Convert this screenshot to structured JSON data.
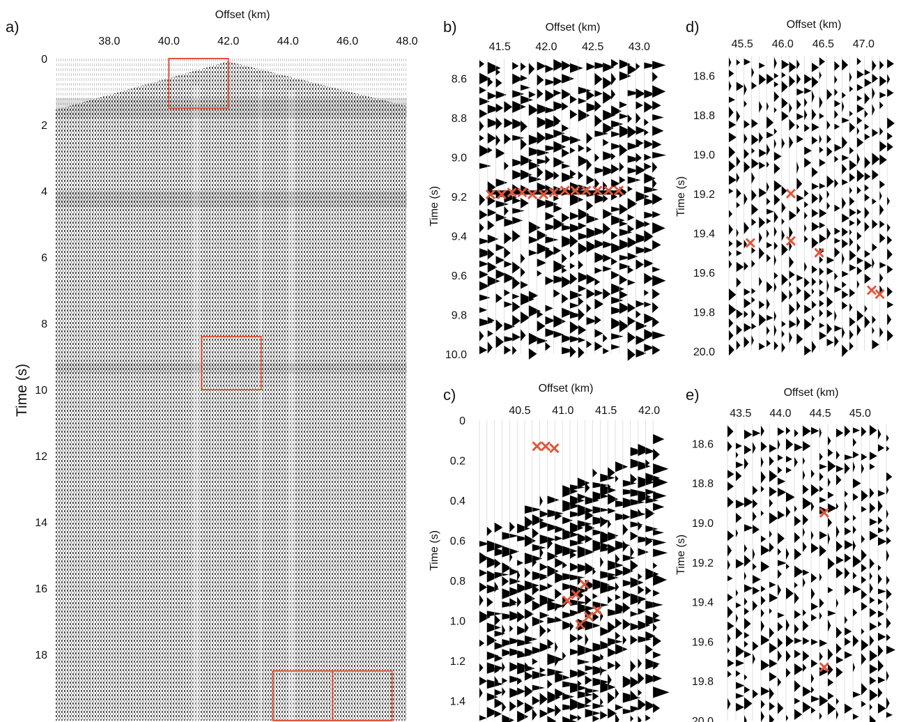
{
  "colors": {
    "box": "#e2553a",
    "pick": "#e2553a",
    "trace": "#000000",
    "bg": "#ffffff"
  },
  "panels": [
    {
      "id": "a",
      "label": "a)",
      "xlabel": "Offset (km)",
      "ylabel": "Time (s)",
      "xticks": [
        "38.0",
        "40.0",
        "42.0",
        "44.0",
        "46.0",
        "48.0"
      ],
      "yticks": [
        "0",
        "2",
        "4",
        "6",
        "8",
        "10",
        "12",
        "14",
        "16",
        "18"
      ],
      "xlim": [
        36.2,
        48.0
      ],
      "ylim": [
        0,
        20
      ],
      "boxes": [
        {
          "x": [
            40.0,
            42.0
          ],
          "t": [
            0,
            1.5
          ]
        },
        {
          "x": [
            41.1,
            43.1
          ],
          "t": [
            8.4,
            10.0
          ]
        },
        {
          "x": [
            43.5,
            45.5
          ],
          "t": [
            18.5,
            20.0
          ]
        },
        {
          "x": [
            45.5,
            47.5
          ],
          "t": [
            18.5,
            20.0
          ]
        }
      ]
    },
    {
      "id": "b",
      "label": "b)",
      "xlabel": "Offset (km)",
      "ylabel": "Time (s)",
      "xticks": [
        "41.5",
        "42.0",
        "42.5",
        "43.0"
      ],
      "yticks": [
        "8.6",
        "8.8",
        "9.0",
        "9.2",
        "9.4",
        "9.6",
        "9.8",
        "10.0"
      ],
      "xlim": [
        41.25,
        43.2
      ],
      "ylim": [
        8.5,
        10.0
      ],
      "picks": [
        {
          "x": 41.4,
          "t": 9.19
        },
        {
          "x": 41.52,
          "t": 9.19
        },
        {
          "x": 41.63,
          "t": 9.18
        },
        {
          "x": 41.74,
          "t": 9.18
        },
        {
          "x": 41.85,
          "t": 9.19
        },
        {
          "x": 41.97,
          "t": 9.19
        },
        {
          "x": 42.08,
          "t": 9.18
        },
        {
          "x": 42.2,
          "t": 9.17
        },
        {
          "x": 42.31,
          "t": 9.17
        },
        {
          "x": 42.43,
          "t": 9.17
        },
        {
          "x": 42.55,
          "t": 9.17
        },
        {
          "x": 42.67,
          "t": 9.17
        },
        {
          "x": 42.78,
          "t": 9.17
        }
      ]
    },
    {
      "id": "c",
      "label": "c)",
      "xlabel": "Offset (km)",
      "ylabel": "Time (s)",
      "xticks": [
        "40.5",
        "41.0",
        "41.5",
        "42.0"
      ],
      "yticks": [
        "0",
        "0.2",
        "0.4",
        "0.6",
        "0.8",
        "1.0",
        "1.2",
        "1.4"
      ],
      "xlim": [
        40.0,
        42.1
      ],
      "ylim": [
        0,
        1.5
      ],
      "picks": [
        {
          "x": 40.7,
          "t": 0.13
        },
        {
          "x": 40.8,
          "t": 0.13
        },
        {
          "x": 40.9,
          "t": 0.14
        },
        {
          "x": 41.05,
          "t": 0.9
        },
        {
          "x": 41.15,
          "t": 0.87
        },
        {
          "x": 41.25,
          "t": 0.82
        },
        {
          "x": 41.2,
          "t": 1.02
        },
        {
          "x": 41.3,
          "t": 0.98
        },
        {
          "x": 41.4,
          "t": 0.95
        }
      ]
    },
    {
      "id": "d",
      "label": "d)",
      "xlabel": "Offset (km)",
      "ylabel": "Time (s)",
      "xticks": [
        "45.5",
        "46.0",
        "46.5",
        "47.0"
      ],
      "yticks": [
        "18.6",
        "18.8",
        "19.0",
        "19.2",
        "19.4",
        "19.6",
        "19.8",
        "20.0"
      ],
      "xlim": [
        45.3,
        47.35
      ],
      "ylim": [
        18.5,
        20.0
      ],
      "picks": [
        {
          "x": 46.1,
          "t": 19.2
        },
        {
          "x": 45.6,
          "t": 19.45
        },
        {
          "x": 46.1,
          "t": 19.44
        },
        {
          "x": 46.45,
          "t": 19.5
        },
        {
          "x": 47.1,
          "t": 19.69
        },
        {
          "x": 47.2,
          "t": 19.71
        }
      ]
    },
    {
      "id": "e",
      "label": "e)",
      "xlabel": "Offset (km)",
      "ylabel": "Time (s)",
      "xticks": [
        "43.5",
        "44.0",
        "44.5",
        "45.0"
      ],
      "yticks": [
        "18.6",
        "18.8",
        "19.0",
        "19.2",
        "19.4",
        "19.6",
        "19.8",
        "20.0"
      ],
      "xlim": [
        43.3,
        45.4
      ],
      "ylim": [
        18.5,
        20.0
      ],
      "picks": [
        {
          "x": 44.55,
          "t": 18.95
        },
        {
          "x": 44.55,
          "t": 19.73
        }
      ]
    }
  ]
}
